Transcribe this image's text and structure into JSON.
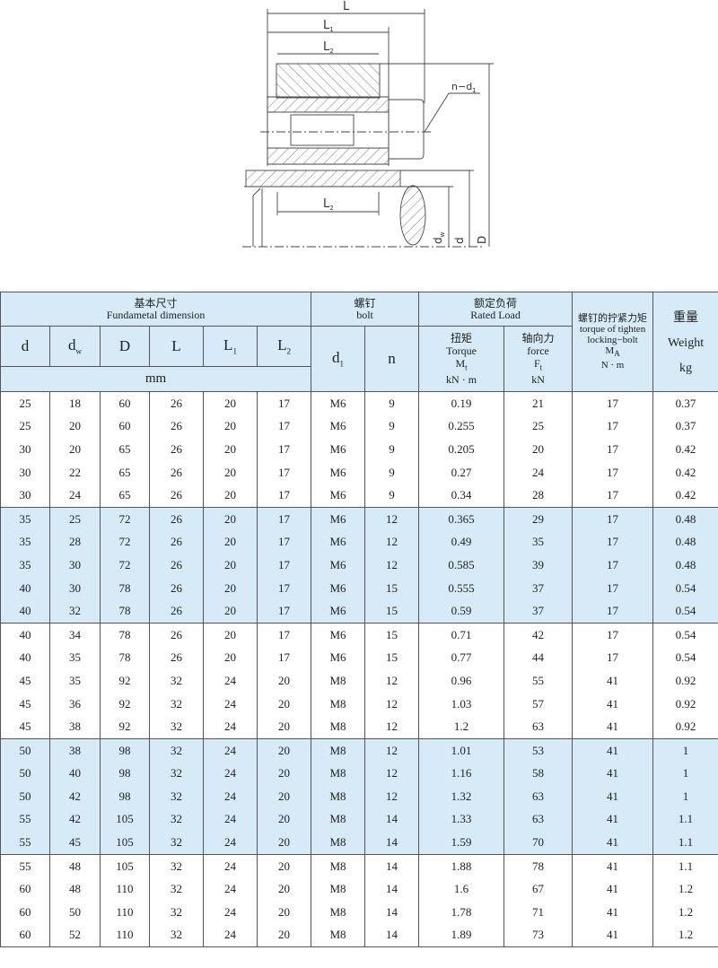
{
  "drawing": {
    "labels": {
      "L": "L",
      "L1": "L",
      "L1_sub": "1",
      "L2": "L",
      "L2_sub": "2",
      "n_d1": "n−d",
      "n_d1_sub": "1",
      "dw": "d",
      "dw_sub": "w",
      "d": "d",
      "D": "D"
    }
  },
  "header": {
    "group_fundamental_cn": "基本尺寸",
    "group_fundamental_en": "Fundametal  dimension",
    "group_bolt_cn": "螺钉",
    "group_bolt_en": "bolt",
    "group_rated_cn": "额定负荷",
    "group_rated_en": "Rated  Load",
    "tighten_cn": "螺钉的拧紧力矩",
    "tighten_en": "torque of tighten locking−bolt",
    "tighten_sym": "M",
    "tighten_sym_sub": "A",
    "tighten_unit": "N · m",
    "weight_cn": "重量",
    "weight_en": "Weight",
    "weight_unit": "kg",
    "cols": {
      "d": "d",
      "dw": "d",
      "dw_sub": "w",
      "D": "D",
      "L": "L",
      "L1": "L",
      "L1_sub": "1",
      "L2": "L",
      "L2_sub": "2",
      "d1": "d",
      "d1_sub": "1",
      "n": "n"
    },
    "mm": "mm",
    "torque_cn": "扭矩",
    "torque_en": "Torque",
    "torque_sym": "M",
    "torque_sym_sub": "t",
    "torque_unit": "kN · m",
    "force_cn": "轴向力",
    "force_en": "force",
    "force_sym": "F",
    "force_sym_sub": "t",
    "force_unit": "kN"
  },
  "rows": [
    [
      "25",
      "18",
      "60",
      "26",
      "20",
      "17",
      "M6",
      "9",
      "0.19",
      "21",
      "17",
      "0.37"
    ],
    [
      "25",
      "20",
      "60",
      "26",
      "20",
      "17",
      "M6",
      "9",
      "0.255",
      "25",
      "17",
      "0.37"
    ],
    [
      "30",
      "20",
      "65",
      "26",
      "20",
      "17",
      "M6",
      "9",
      "0.205",
      "20",
      "17",
      "0.42"
    ],
    [
      "30",
      "22",
      "65",
      "26",
      "20",
      "17",
      "M6",
      "9",
      "0.27",
      "24",
      "17",
      "0.42"
    ],
    [
      "30",
      "24",
      "65",
      "26",
      "20",
      "17",
      "M6",
      "9",
      "0.34",
      "28",
      "17",
      "0.42"
    ],
    [
      "35",
      "25",
      "72",
      "26",
      "20",
      "17",
      "M6",
      "12",
      "0.365",
      "29",
      "17",
      "0.48"
    ],
    [
      "35",
      "28",
      "72",
      "26",
      "20",
      "17",
      "M6",
      "12",
      "0.49",
      "35",
      "17",
      "0.48"
    ],
    [
      "35",
      "30",
      "72",
      "26",
      "20",
      "17",
      "M6",
      "12",
      "0.585",
      "39",
      "17",
      "0.48"
    ],
    [
      "40",
      "30",
      "78",
      "26",
      "20",
      "17",
      "M6",
      "15",
      "0.555",
      "37",
      "17",
      "0.54"
    ],
    [
      "40",
      "32",
      "78",
      "26",
      "20",
      "17",
      "M6",
      "15",
      "0.59",
      "37",
      "17",
      "0.54"
    ],
    [
      "40",
      "34",
      "78",
      "26",
      "20",
      "17",
      "M6",
      "15",
      "0.71",
      "42",
      "17",
      "0.54"
    ],
    [
      "40",
      "35",
      "78",
      "26",
      "20",
      "17",
      "M6",
      "15",
      "0.77",
      "44",
      "17",
      "0.54"
    ],
    [
      "45",
      "35",
      "92",
      "32",
      "24",
      "20",
      "M8",
      "12",
      "0.96",
      "55",
      "41",
      "0.92"
    ],
    [
      "45",
      "36",
      "92",
      "32",
      "24",
      "20",
      "M8",
      "12",
      "1.03",
      "57",
      "41",
      "0.92"
    ],
    [
      "45",
      "38",
      "92",
      "32",
      "24",
      "20",
      "M8",
      "12",
      "1.2",
      "63",
      "41",
      "0.92"
    ],
    [
      "50",
      "38",
      "98",
      "32",
      "24",
      "20",
      "M8",
      "12",
      "1.01",
      "53",
      "41",
      "1"
    ],
    [
      "50",
      "40",
      "98",
      "32",
      "24",
      "20",
      "M8",
      "12",
      "1.16",
      "58",
      "41",
      "1"
    ],
    [
      "50",
      "42",
      "98",
      "32",
      "24",
      "20",
      "M8",
      "12",
      "1.32",
      "63",
      "41",
      "1"
    ],
    [
      "55",
      "42",
      "105",
      "32",
      "24",
      "20",
      "M8",
      "14",
      "1.33",
      "63",
      "41",
      "1.1"
    ],
    [
      "55",
      "45",
      "105",
      "32",
      "24",
      "20",
      "M8",
      "14",
      "1.59",
      "70",
      "41",
      "1.1"
    ],
    [
      "55",
      "48",
      "105",
      "32",
      "24",
      "20",
      "M8",
      "14",
      "1.88",
      "78",
      "41",
      "1.1"
    ],
    [
      "60",
      "48",
      "110",
      "32",
      "24",
      "20",
      "M8",
      "14",
      "1.6",
      "67",
      "41",
      "1.2"
    ],
    [
      "60",
      "50",
      "110",
      "32",
      "24",
      "20",
      "M8",
      "14",
      "1.78",
      "71",
      "41",
      "1.2"
    ],
    [
      "60",
      "52",
      "110",
      "32",
      "24",
      "20",
      "M8",
      "14",
      "1.89",
      "73",
      "41",
      "1.2"
    ]
  ],
  "colors": {
    "band": "#d6eaf7",
    "line": "#555555"
  }
}
